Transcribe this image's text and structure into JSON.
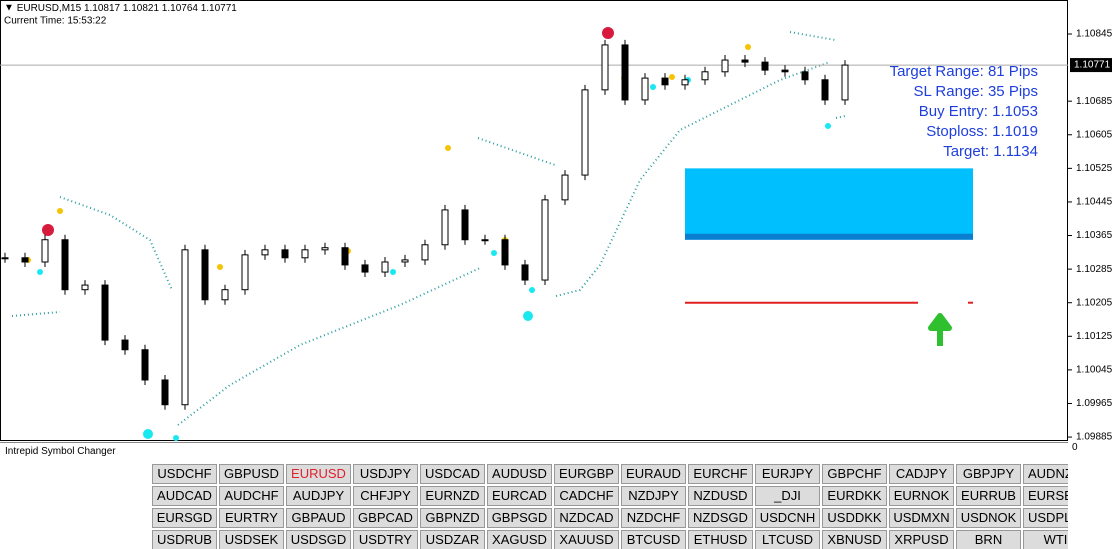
{
  "header": {
    "symbol": "EURUSD,M15",
    "quote": "1.10817 1.10821 1.10764 1.10771",
    "time": "Current Time: 15:53:22"
  },
  "chart_data": {
    "type": "candles",
    "closes": [
      1.10312,
      1.10302,
      1.10355,
      1.10236,
      1.10247,
      1.10116,
      1.10093,
      1.10021,
      1.09962,
      1.10331,
      1.10212,
      1.10236,
      1.10319,
      1.10331,
      1.10312,
      1.10331,
      1.10336,
      1.10295,
      1.10278,
      1.10302,
      1.10307,
      1.10343,
      1.10426,
      1.10355,
      1.10355,
      1.10295,
      1.10259,
      1.1045,
      1.10509,
      1.10712,
      1.10819,
      1.10688,
      1.1074,
      1.10724,
      1.10736,
      1.10755,
      1.10783,
      1.10778,
      1.10759,
      1.10755,
      1.10736,
      1.10688,
      1.10771
    ],
    "ylim": [
      1.09878,
      1.10926
    ],
    "yticks": [
      1.10845,
      1.10685,
      1.10605,
      1.10525,
      1.10445,
      1.10365,
      1.10285,
      1.10205,
      1.10125,
      1.10045,
      1.09965,
      1.09885
    ],
    "last_price": 1.10771,
    "bull_color": "#ffffff",
    "bear_color": "#000000",
    "zone": {
      "top": 1.10525,
      "bottom": 1.10355,
      "color": "#00bfff"
    },
    "stop_line": {
      "value": 1.10205,
      "color": "#e02020"
    }
  },
  "info": [
    "Target Range: 81 Pips",
    "SL Range: 35 Pips",
    "Buy Entry: 1.1053",
    "Stoploss: 1.1019",
    "Target: 1.1134"
  ],
  "panel": {
    "title": "Intrepid Symbol Changer",
    "scale": "0",
    "active": [
      0,
      2
    ],
    "active_color": "#e0202a",
    "buttons": [
      [
        "USDCHF",
        "GBPUSD",
        "EURUSD",
        "USDJPY",
        "USDCAD",
        "AUDUSD",
        "EURGBP",
        "EURAUD",
        "EURCHF",
        "EURJPY",
        "GBPCHF",
        "CADJPY",
        "GBPJPY",
        "AUDNZ"
      ],
      [
        "AUDCAD",
        "AUDCHF",
        "AUDJPY",
        "CHFJPY",
        "EURNZD",
        "EURCAD",
        "CADCHF",
        "NZDJPY",
        "NZDUSD",
        "_DJI",
        "EURDKK",
        "EURNOK",
        "EURRUB",
        "EURSE"
      ],
      [
        "EURSGD",
        "EURTRY",
        "GBPAUD",
        "GBPCAD",
        "GBPNZD",
        "GBPSGD",
        "NZDCAD",
        "NZDCHF",
        "NZDSGD",
        "USDCNH",
        "USDDKK",
        "USDMXN",
        "USDNOK",
        "USDPL"
      ],
      [
        "USDRUB",
        "USDSEK",
        "USDSGD",
        "USDTRY",
        "USDZAR",
        "XAGUSD",
        "XAUUSD",
        "BTCUSD",
        "ETHUSD",
        "LTCUSD",
        "XBNUSD",
        "XRPUSD",
        "BRN",
        "WTI"
      ]
    ]
  }
}
